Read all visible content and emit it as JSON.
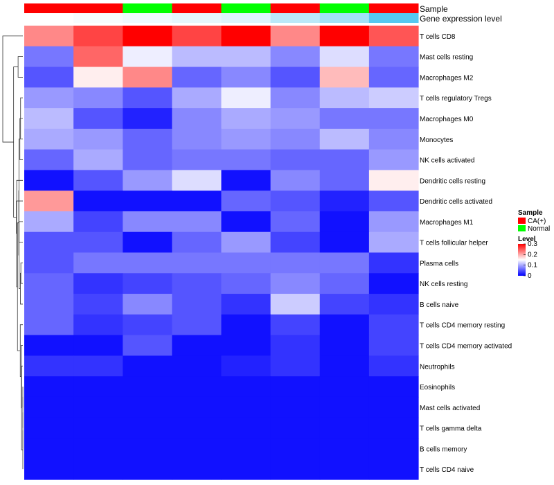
{
  "chart_data": {
    "type": "heatmap",
    "annotation_rows": [
      {
        "label": "Sample",
        "values": [
          "CA(+)",
          "CA(+)",
          "Normal",
          "CA(+)",
          "Normal",
          "CA(+)",
          "Normal",
          "CA(+)"
        ]
      },
      {
        "label": "Gene expression level",
        "values": [
          0.0,
          0.05,
          0.1,
          0.15,
          0.2,
          0.4,
          0.55,
          1.0
        ]
      }
    ],
    "rows": [
      "T cells CD8",
      "Mast cells resting",
      "Macrophages M2",
      "T cells regulatory  Tregs",
      "Macrophages M0",
      "Monocytes",
      "NK cells activated",
      "Dendritic cells resting",
      "Dendritic cells activated",
      "Macrophages M1",
      "T cells follicular helper",
      "Plasma cells",
      "NK cells resting",
      "B cells naive",
      "T cells CD4 memory resting",
      "T cells CD4 memory activated",
      "Neutrophils",
      "Eosinophils",
      "Mast cells activated",
      "T cells gamma delta",
      "B cells memory",
      "T cells CD4 naive"
    ],
    "values": [
      [
        0.22,
        0.26,
        0.3,
        0.26,
        0.3,
        0.22,
        0.3,
        0.25
      ],
      [
        0.07,
        0.24,
        0.14,
        0.11,
        0.11,
        0.08,
        0.13,
        0.07
      ],
      [
        0.05,
        0.16,
        0.22,
        0.06,
        0.08,
        0.05,
        0.19,
        0.06
      ],
      [
        0.09,
        0.08,
        0.05,
        0.1,
        0.14,
        0.08,
        0.11,
        0.12
      ],
      [
        0.11,
        0.05,
        0.02,
        0.08,
        0.1,
        0.09,
        0.07,
        0.07
      ],
      [
        0.1,
        0.09,
        0.06,
        0.08,
        0.09,
        0.08,
        0.11,
        0.08
      ],
      [
        0.06,
        0.1,
        0.06,
        0.07,
        0.07,
        0.06,
        0.06,
        0.09
      ],
      [
        0.01,
        0.05,
        0.09,
        0.13,
        0.01,
        0.08,
        0.06,
        0.16
      ],
      [
        0.21,
        0.01,
        0.01,
        0.01,
        0.06,
        0.05,
        0.02,
        0.05
      ],
      [
        0.1,
        0.04,
        0.08,
        0.08,
        0.01,
        0.06,
        0.01,
        0.09
      ],
      [
        0.05,
        0.05,
        0.01,
        0.06,
        0.09,
        0.04,
        0.01,
        0.1
      ],
      [
        0.05,
        0.07,
        0.07,
        0.07,
        0.07,
        0.07,
        0.07,
        0.03
      ],
      [
        0.06,
        0.03,
        0.04,
        0.05,
        0.06,
        0.08,
        0.06,
        0.01
      ],
      [
        0.06,
        0.04,
        0.08,
        0.05,
        0.03,
        0.12,
        0.04,
        0.03
      ],
      [
        0.06,
        0.03,
        0.04,
        0.05,
        0.01,
        0.04,
        0.01,
        0.04
      ],
      [
        0.01,
        0.01,
        0.05,
        0.01,
        0.01,
        0.03,
        0.01,
        0.04
      ],
      [
        0.03,
        0.03,
        0.01,
        0.01,
        0.02,
        0.03,
        0.01,
        0.03
      ],
      [
        0.01,
        0.01,
        0.01,
        0.01,
        0.01,
        0.01,
        0.01,
        0.01
      ],
      [
        0.01,
        0.01,
        0.01,
        0.01,
        0.01,
        0.01,
        0.01,
        0.01
      ],
      [
        0.01,
        0.01,
        0.01,
        0.01,
        0.01,
        0.01,
        0.01,
        0.01
      ],
      [
        0.01,
        0.01,
        0.01,
        0.01,
        0.01,
        0.01,
        0.01,
        0.01
      ],
      [
        0.01,
        0.01,
        0.01,
        0.01,
        0.01,
        0.01,
        0.01,
        0.01
      ]
    ],
    "color_scale": {
      "min": 0,
      "mid": 0.15,
      "max": 0.3,
      "low_color": "#0000ff",
      "mid_color": "#ffffff",
      "high_color": "#ff0000"
    },
    "legend": {
      "placement": "right",
      "sample": {
        "title": "Sample",
        "entries": [
          {
            "label": "CA(+)",
            "color": "#ff0000"
          },
          {
            "label": "Normal",
            "color": "#00ff00"
          }
        ]
      },
      "level": {
        "title": "Level",
        "ticks": [
          {
            "label": "0.3",
            "value": 0.3
          },
          {
            "label": "0.2",
            "value": 0.2
          },
          {
            "label": "0.1",
            "value": 0.1
          },
          {
            "label": "0",
            "value": 0
          }
        ]
      }
    },
    "row_dendrogram": true,
    "expression_colors": {
      "low": "#ffffff",
      "high": "#56c8f0"
    }
  }
}
